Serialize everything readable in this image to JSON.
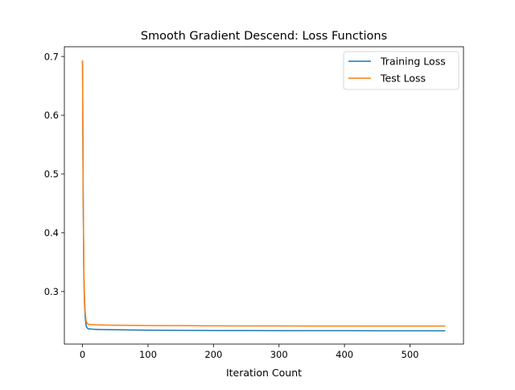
{
  "chart_data": {
    "type": "line",
    "title": "Smooth Gradient Descend: Loss Functions",
    "xlabel": "Iteration Count",
    "ylabel": "",
    "xlim": [
      -27.7,
      581.7
    ],
    "ylim": [
      0.2106,
      0.7166
    ],
    "xticks": [
      0,
      100,
      200,
      300,
      400,
      500
    ],
    "yticks": [
      0.3,
      0.4,
      0.5,
      0.6,
      0.7
    ],
    "ytick_labels": [
      "0.3",
      "0.4",
      "0.5",
      "0.6",
      "0.7"
    ],
    "grid": false,
    "legend_position": "top-right",
    "series": [
      {
        "name": "Training Loss",
        "color": "#1f77b4",
        "x": [
          0,
          1,
          2,
          3,
          4,
          5,
          6,
          8,
          10,
          15,
          20,
          30,
          50,
          75,
          100,
          150,
          200,
          250,
          300,
          350,
          400,
          450,
          500,
          554
        ],
        "y": [
          0.693,
          0.46,
          0.33,
          0.282,
          0.258,
          0.246,
          0.24,
          0.237,
          0.2365,
          0.236,
          0.2357,
          0.2353,
          0.235,
          0.2346,
          0.2343,
          0.2339,
          0.2336,
          0.2335,
          0.2334,
          0.2334,
          0.2334,
          0.2333,
          0.2333,
          0.2333
        ]
      },
      {
        "name": "Test Loss",
        "color": "#ff7f0e",
        "x": [
          0,
          1,
          2,
          3,
          4,
          5,
          6,
          8,
          10,
          15,
          20,
          30,
          50,
          75,
          100,
          150,
          200,
          250,
          300,
          350,
          400,
          450,
          500,
          554
        ],
        "y": [
          0.693,
          0.47,
          0.34,
          0.29,
          0.266,
          0.254,
          0.248,
          0.245,
          0.244,
          0.2436,
          0.2433,
          0.243,
          0.2427,
          0.2424,
          0.2422,
          0.2419,
          0.2416,
          0.2415,
          0.2414,
          0.2413,
          0.2413,
          0.2413,
          0.2413,
          0.2413
        ]
      }
    ]
  }
}
